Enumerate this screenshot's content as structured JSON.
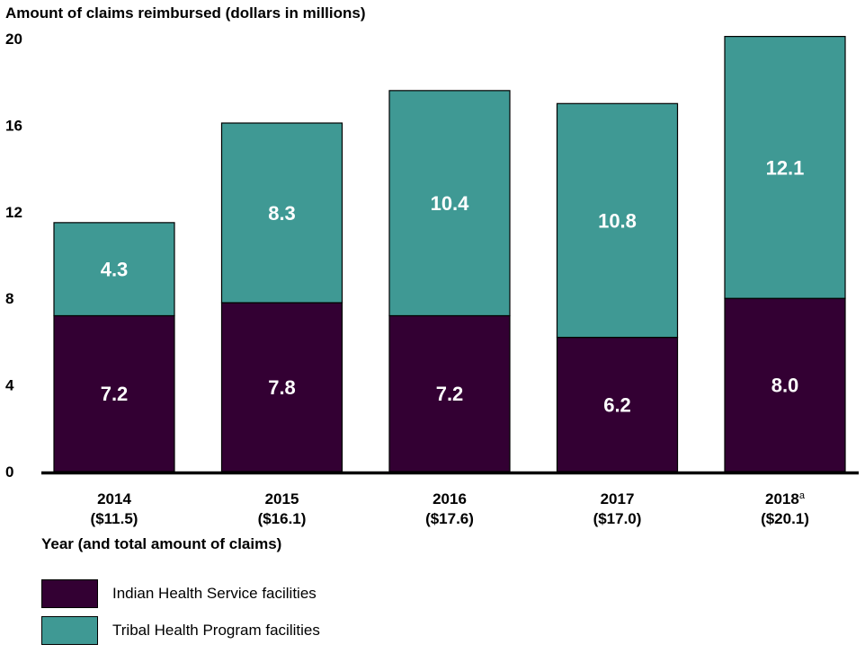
{
  "colors": {
    "ihs": "#330033",
    "tribal": "#3f9994",
    "bar_label": "#ffffff",
    "axis": "#000000"
  },
  "chart_data": {
    "type": "bar",
    "stacked": true,
    "ylabel": "Amount of claims reimbursed (dollars in millions)",
    "xlabel": "Year (and total amount of claims)",
    "ylim": [
      0,
      20
    ],
    "yticks": [
      "0",
      "4",
      "8",
      "12",
      "16",
      "20"
    ],
    "grid": false,
    "legend_position": "bottom-left",
    "categories": [
      {
        "year": "2014",
        "superscript": "",
        "total": "($11.5)"
      },
      {
        "year": "2015",
        "superscript": "",
        "total": "($16.1)"
      },
      {
        "year": "2016",
        "superscript": "",
        "total": "($17.6)"
      },
      {
        "year": "2017",
        "superscript": "",
        "total": "($17.0)"
      },
      {
        "year": "2018",
        "superscript": "a",
        "total": "($20.1)"
      }
    ],
    "series": [
      {
        "name": "Indian Health Service facilities",
        "color_key": "ihs",
        "values": [
          7.2,
          7.8,
          7.2,
          6.2,
          8.0
        ],
        "labels": [
          "7.2",
          "7.8",
          "7.2",
          "6.2",
          "8.0"
        ]
      },
      {
        "name": "Tribal Health Program facilities",
        "color_key": "tribal",
        "values": [
          4.3,
          8.3,
          10.4,
          10.8,
          12.1
        ],
        "labels": [
          "4.3",
          "8.3",
          "10.4",
          "10.8",
          "12.1"
        ]
      }
    ]
  }
}
